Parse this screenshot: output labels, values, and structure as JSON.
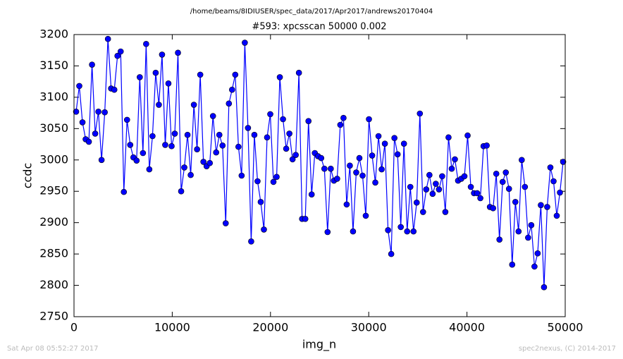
{
  "chart_data": {
    "type": "line",
    "suptitle": "/home/beams/8IDIUSER/spec_data/2017/Apr2017/andrews20170404",
    "title": "#593: xpcsscan 50000 0.002",
    "xlabel": "img_n",
    "ylabel": "ccdc",
    "color": "#0000ff",
    "xlim": [
      0,
      50000
    ],
    "xticks": [
      0,
      10000,
      20000,
      30000,
      40000,
      50000
    ],
    "ylim": [
      2750,
      3200
    ],
    "yticks": [
      2750,
      2800,
      2850,
      2900,
      2950,
      3000,
      3050,
      3100,
      3150,
      3200
    ],
    "x": [
      215,
      539,
      863,
      1187,
      1511,
      1835,
      2159,
      2483,
      2807,
      3131,
      3455,
      3779,
      4103,
      4427,
      4751,
      5075,
      5399,
      5723,
      6047,
      6371,
      6695,
      7019,
      7343,
      7667,
      7991,
      8315,
      8639,
      8963,
      9287,
      9611,
      9935,
      10259,
      10583,
      10907,
      11231,
      11555,
      11879,
      12203,
      12527,
      12851,
      13175,
      13499,
      13823,
      14147,
      14471,
      14795,
      15119,
      15443,
      15767,
      16091,
      16415,
      16739,
      17063,
      17387,
      17711,
      18035,
      18359,
      18683,
      19007,
      19331,
      19655,
      19979,
      20303,
      20627,
      20951,
      21275,
      21599,
      21923,
      22247,
      22571,
      22895,
      23219,
      23543,
      23867,
      24191,
      24515,
      24839,
      25163,
      25487,
      25811,
      26135,
      26459,
      26783,
      27107,
      27431,
      27755,
      28079,
      28403,
      28727,
      29051,
      29375,
      29699,
      30023,
      30347,
      30671,
      30995,
      31319,
      31643,
      31967,
      32291,
      32615,
      32939,
      33263,
      33587,
      33911,
      34235,
      34559,
      34883,
      35207,
      35531,
      35855,
      36179,
      36503,
      36827,
      37151,
      37475,
      37799,
      38123,
      38447,
      38771,
      39095,
      39419,
      39743,
      40067,
      40391,
      40715,
      41039,
      41363,
      41687,
      42011,
      42335,
      42659,
      42983,
      43307,
      43631,
      43955,
      44279,
      44603,
      44927,
      45251,
      45575,
      45899,
      46223,
      46547,
      46871,
      47195,
      47519,
      47843,
      48167,
      48491,
      48815,
      49139,
      49463,
      49787
    ],
    "values": [
      3077,
      3118,
      3060,
      3033,
      3029,
      3152,
      3042,
      3077,
      3000,
      3076,
      3193,
      3114,
      3112,
      3166,
      3173,
      2949,
      3064,
      3024,
      3004,
      2999,
      3132,
      3011,
      3185,
      2985,
      3038,
      3139,
      3088,
      3168,
      3024,
      3122,
      3022,
      3042,
      3171,
      2950,
      2988,
      3040,
      2976,
      3088,
      3017,
      3136,
      2997,
      2990,
      2995,
      3070,
      3012,
      3040,
      3023,
      2899,
      3090,
      3112,
      3136,
      3021,
      2975,
      3187,
      3051,
      2870,
      3040,
      2966,
      2933,
      2889,
      3036,
      3073,
      2965,
      2973,
      3132,
      3065,
      3018,
      3042,
      3001,
      3008,
      3139,
      2906,
      2906,
      3062,
      2945,
      3011,
      3006,
      3003,
      2986,
      2885,
      2986,
      2967,
      2970,
      3056,
      3067,
      2929,
      2991,
      2886,
      2980,
      3003,
      2975,
      2911,
      3065,
      3007,
      2964,
      3038,
      2985,
      3026,
      2888,
      2850,
      3035,
      3009,
      2893,
      3026,
      2886,
      2957,
      2886,
      2932,
      3074,
      2917,
      2953,
      2976,
      2946,
      2962,
      2953,
      2974,
      2917,
      3036,
      2986,
      3001,
      2967,
      2970,
      2974,
      3039,
      2957,
      2947,
      2947,
      2939,
      3022,
      3023,
      2925,
      2923,
      2978,
      2873,
      2965,
      2980,
      2954,
      2833,
      2933,
      2886,
      3000,
      2957,
      2876,
      2896,
      2830,
      2851,
      2928,
      2797,
      2925,
      2988,
      2966,
      2911,
      2948,
      2997
    ]
  },
  "footer": {
    "left": "Sat Apr 08 05:52:27 2017",
    "right": "spec2nexus, (C) 2014-2017"
  }
}
